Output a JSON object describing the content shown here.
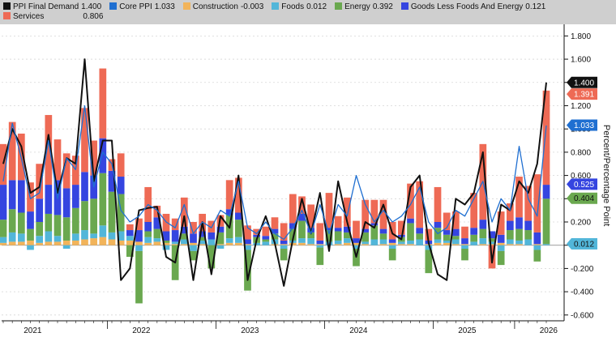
{
  "legend": {
    "items": [
      {
        "name": "PPI Final Demand",
        "value": "1.400",
        "color": "#111111"
      },
      {
        "name": "Core PPI",
        "value": "1.033",
        "color": "#1f6fd1"
      },
      {
        "name": "Construction",
        "value": "-0.003",
        "color": "#f2b45a"
      },
      {
        "name": "Foods",
        "value": "0.012",
        "color": "#52b6d9"
      },
      {
        "name": "Energy",
        "value": "0.392",
        "color": "#6aa84f"
      },
      {
        "name": "Goods Less Foods And Energy",
        "value": "0.121",
        "color": "#3545e0"
      },
      {
        "name": "Services",
        "value": "0.806",
        "color": "#ee6a55"
      }
    ]
  },
  "chart_data": {
    "type": "bar",
    "stacked": true,
    "ylabel": "Percent/Percentage Point",
    "ylim": [
      -0.65,
      1.9
    ],
    "yticks": [
      1.8,
      1.6,
      1.4,
      1.2,
      1.0,
      0.8,
      0.6,
      0.4,
      0.2,
      0.0,
      -0.2,
      -0.4,
      -0.6
    ],
    "ytick_labels": [
      "1.800",
      "1.600",
      "1.400",
      "1.200",
      "1.000",
      "0.800",
      "0.600",
      "0.400",
      "0.200",
      "",
      "-0.200",
      "-0.400",
      "-0.600"
    ],
    "x_labels": [
      "2021",
      "2022",
      "2023",
      "2024",
      "2025",
      "2026"
    ],
    "x_label_index": [
      2,
      14,
      26,
      38,
      50,
      59
    ],
    "grid": true,
    "legend_position": "top",
    "series": [
      {
        "name": "Construction",
        "values": [
          0.02,
          0.03,
          0.03,
          0.04,
          0.02,
          0.03,
          0.03,
          0.04,
          0.04,
          0.05,
          0.06,
          0.07,
          0.05,
          0.04,
          0.04,
          0.03,
          0.02,
          0.03,
          0.02,
          0.01,
          0.01,
          0.02,
          0.01,
          0.0,
          0.01,
          0.02,
          0.02,
          0.01,
          0.0,
          0.0,
          0.01,
          0.01,
          0.02,
          0.02,
          0.01,
          0.01,
          0.0,
          0.01,
          0.02,
          0.02,
          0.01,
          0.0,
          0.01,
          0.02,
          0.01,
          0.01,
          0.0,
          0.01,
          0.02,
          0.02,
          0.01,
          0.01,
          0.0,
          0.01,
          0.01,
          0.02,
          0.01,
          0.01,
          0.0,
          0.01,
          0.0
        ]
      },
      {
        "name": "Foods",
        "values": [
          0.05,
          0.08,
          0.07,
          -0.04,
          0.06,
          0.09,
          0.05,
          -0.03,
          0.06,
          0.08,
          0.04,
          0.1,
          0.06,
          0.08,
          0.04,
          -0.05,
          0.05,
          0.03,
          -0.04,
          0.02,
          0.04,
          -0.05,
          0.03,
          0.05,
          -0.03,
          0.04,
          0.05,
          -0.04,
          0.02,
          0.03,
          0.04,
          -0.03,
          0.02,
          0.04,
          0.05,
          -0.02,
          0.03,
          0.03,
          0.04,
          -0.03,
          0.02,
          0.05,
          0.04,
          -0.03,
          0.02,
          0.03,
          0.05,
          -0.04,
          0.03,
          0.02,
          0.04,
          -0.03,
          0.03,
          0.05,
          0.02,
          -0.05,
          0.04,
          0.03,
          0.05,
          -0.04,
          0.01
        ]
      },
      {
        "name": "Energy",
        "values": [
          0.15,
          0.2,
          0.18,
          0.1,
          0.12,
          0.15,
          0.18,
          0.2,
          0.22,
          0.25,
          0.3,
          0.45,
          0.35,
          0.32,
          -0.1,
          -0.45,
          0.05,
          0.08,
          0.02,
          -0.3,
          0.05,
          -0.08,
          0.03,
          -0.2,
          0.1,
          0.2,
          0.15,
          -0.35,
          0.05,
          0.02,
          0.05,
          -0.1,
          0.1,
          0.15,
          0.05,
          -0.15,
          0.1,
          0.08,
          0.05,
          -0.15,
          0.08,
          0.12,
          0.05,
          -0.1,
          0.04,
          0.15,
          0.05,
          -0.2,
          0.1,
          0.05,
          0.03,
          -0.1,
          0.06,
          0.08,
          0.03,
          -0.12,
          0.08,
          0.1,
          0.08,
          -0.1,
          0.39
        ]
      },
      {
        "name": "Goods Less Foods And Energy",
        "values": [
          0.3,
          0.25,
          0.28,
          0.15,
          0.2,
          0.25,
          0.3,
          0.25,
          0.2,
          0.25,
          0.2,
          0.3,
          0.18,
          0.15,
          0.05,
          0.1,
          0.08,
          0.1,
          0.08,
          0.1,
          0.06,
          0.08,
          0.05,
          0.06,
          0.05,
          0.05,
          0.06,
          0.04,
          0.02,
          0.03,
          0.04,
          0.03,
          0.05,
          0.06,
          0.04,
          0.03,
          0.02,
          0.03,
          0.05,
          0.04,
          0.03,
          0.02,
          0.04,
          0.03,
          0.02,
          0.04,
          0.05,
          0.03,
          0.05,
          0.04,
          0.06,
          0.05,
          0.06,
          0.08,
          0.06,
          0.07,
          0.08,
          0.1,
          0.08,
          0.1,
          0.12
        ]
      },
      {
        "name": "Services",
        "values": [
          0.35,
          0.5,
          0.4,
          0.25,
          0.3,
          0.6,
          0.35,
          0.3,
          0.25,
          0.55,
          0.3,
          0.6,
          0.1,
          0.2,
          0.05,
          0.1,
          0.3,
          0.1,
          0.15,
          0.1,
          0.25,
          0.1,
          0.15,
          0.1,
          0.1,
          0.25,
          0.3,
          0.12,
          0.05,
          0.08,
          0.1,
          0.15,
          0.25,
          0.15,
          0.2,
          0.15,
          0.3,
          0.1,
          0.25,
          0.15,
          0.25,
          0.2,
          0.25,
          0.15,
          0.12,
          0.3,
          0.4,
          0.1,
          0.3,
          0.15,
          0.15,
          0.1,
          0.3,
          0.65,
          -0.2,
          0.2,
          0.15,
          0.35,
          0.3,
          0.5,
          0.81
        ]
      },
      {
        "name": "PPI Final Demand",
        "kind": "line",
        "values": [
          0.7,
          1.0,
          0.85,
          0.45,
          0.5,
          0.95,
          0.45,
          0.75,
          0.7,
          1.6,
          0.55,
          0.9,
          0.9,
          -0.3,
          -0.2,
          0.3,
          0.32,
          0.33,
          -0.1,
          -0.15,
          0.25,
          -0.3,
          0.2,
          -0.25,
          0.25,
          0.15,
          0.6,
          -0.3,
          0.05,
          0.25,
          0.02,
          -0.35,
          0.05,
          0.4,
          0.1,
          0.45,
          -0.05,
          0.55,
          0.2,
          -0.1,
          0.2,
          0.15,
          0.35,
          0.1,
          0.05,
          0.5,
          0.6,
          0.02,
          -0.25,
          -0.3,
          0.4,
          0.35,
          0.45,
          0.8,
          -0.15,
          0.35,
          0.3,
          0.55,
          0.45,
          0.7,
          1.4
        ]
      },
      {
        "name": "Core PPI",
        "kind": "line",
        "values": [
          0.55,
          1.05,
          0.75,
          0.4,
          0.45,
          0.9,
          0.4,
          0.75,
          0.65,
          1.2,
          0.5,
          0.8,
          0.7,
          0.3,
          0.2,
          0.25,
          0.35,
          0.3,
          0.2,
          0.15,
          0.35,
          0.1,
          0.2,
          0.15,
          0.3,
          0.25,
          0.55,
          0.15,
          0.1,
          0.2,
          0.1,
          0.05,
          0.15,
          0.3,
          0.1,
          0.35,
          0.1,
          0.35,
          0.25,
          0.6,
          0.35,
          0.2,
          0.3,
          0.2,
          0.25,
          0.35,
          0.5,
          0.2,
          0.1,
          0.15,
          0.3,
          0.25,
          0.4,
          0.55,
          0.2,
          0.4,
          0.3,
          0.85,
          0.4,
          0.25,
          1.03
        ]
      }
    ],
    "end_tags": [
      {
        "label": "1.400",
        "value": 1.4,
        "bg": "#111111",
        "fg": "#ffffff"
      },
      {
        "label": "1.391",
        "value": 1.3,
        "bg": "#ee6a55",
        "fg": "#ffffff"
      },
      {
        "label": "1.033",
        "value": 1.033,
        "bg": "#1f6fd1",
        "fg": "#ffffff"
      },
      {
        "label": "0.525",
        "value": 0.525,
        "bg": "#3545e0",
        "fg": "#ffffff"
      },
      {
        "label": "0.404",
        "value": 0.404,
        "bg": "#6aa84f",
        "fg": "#111111"
      },
      {
        "label": "0.012",
        "value": 0.012,
        "bg": "#52b6d9",
        "fg": "#111111"
      }
    ]
  }
}
